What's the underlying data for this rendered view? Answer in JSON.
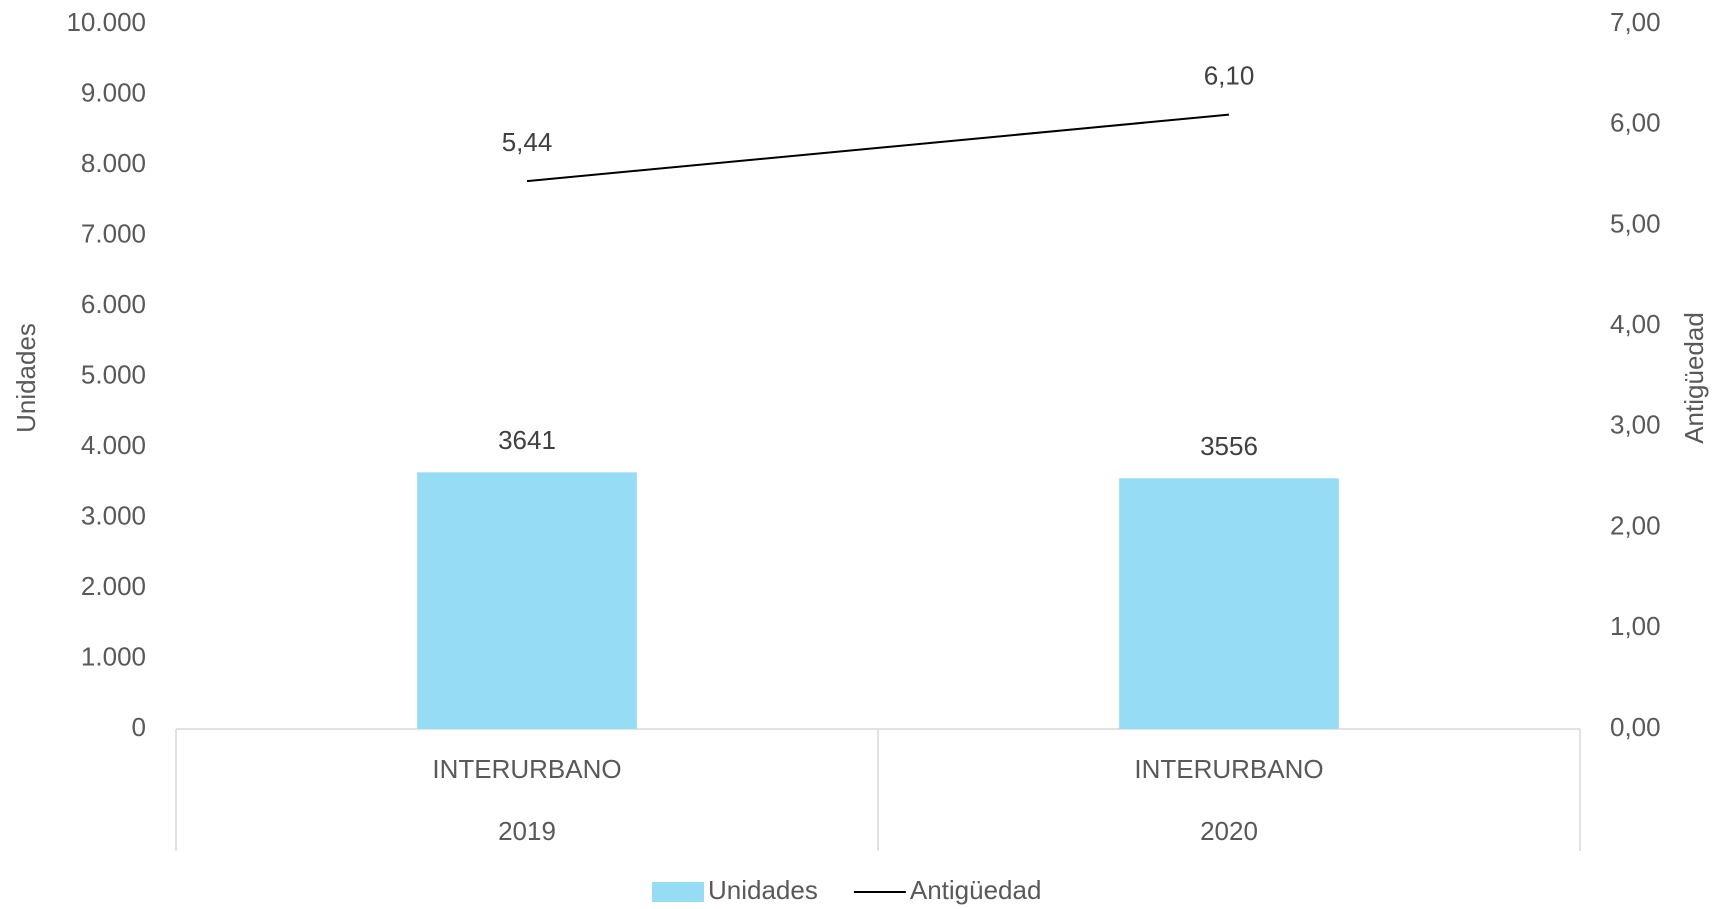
{
  "chart_data": {
    "type": "bar_line",
    "categories": [
      "INTERURBANO",
      "INTERURBANO"
    ],
    "years": [
      "2019",
      "2020"
    ],
    "series": [
      {
        "name": "Unidades",
        "type": "bar",
        "color": "#97dcf5",
        "values": [
          3641,
          3556
        ]
      },
      {
        "name": "Antigüedad",
        "type": "line",
        "axis": "y2",
        "color": "#000000",
        "values": [
          5.44,
          6.1
        ],
        "value_labels": [
          "5,44",
          "6,10"
        ]
      }
    ],
    "y_label": "Unidades",
    "y2_label": "Antigüedad",
    "ylim": [
      0,
      10000
    ],
    "yticks": [
      0,
      {
        "value": 1000,
        "label": "1.000"
      },
      {
        "value": 2000,
        "label": "2.000"
      },
      {
        "value": 3000,
        "label": "3.000"
      },
      {
        "value": 4000,
        "label": "4.000"
      },
      {
        "value": 5000,
        "label": "5.000"
      },
      {
        "value": 6000,
        "label": "6.000"
      },
      {
        "value": 7000,
        "label": "7.000"
      },
      {
        "value": 8000,
        "label": "8.000"
      },
      {
        "value": 9000,
        "label": "9.000"
      },
      {
        "value": 10000,
        "label": "10.000"
      }
    ],
    "y2lim": [
      0,
      7
    ],
    "y2ticks": [
      {
        "value": 0,
        "label": "0,00"
      },
      {
        "value": 1,
        "label": "1,00"
      },
      {
        "value": 2,
        "label": "2,00"
      },
      {
        "value": 3,
        "label": "3,00"
      },
      {
        "value": 4,
        "label": "4,00"
      },
      {
        "value": 5,
        "label": "5,00"
      },
      {
        "value": 6,
        "label": "6,00"
      },
      {
        "value": 7,
        "label": "7,00"
      }
    ],
    "legend": "bottom"
  }
}
